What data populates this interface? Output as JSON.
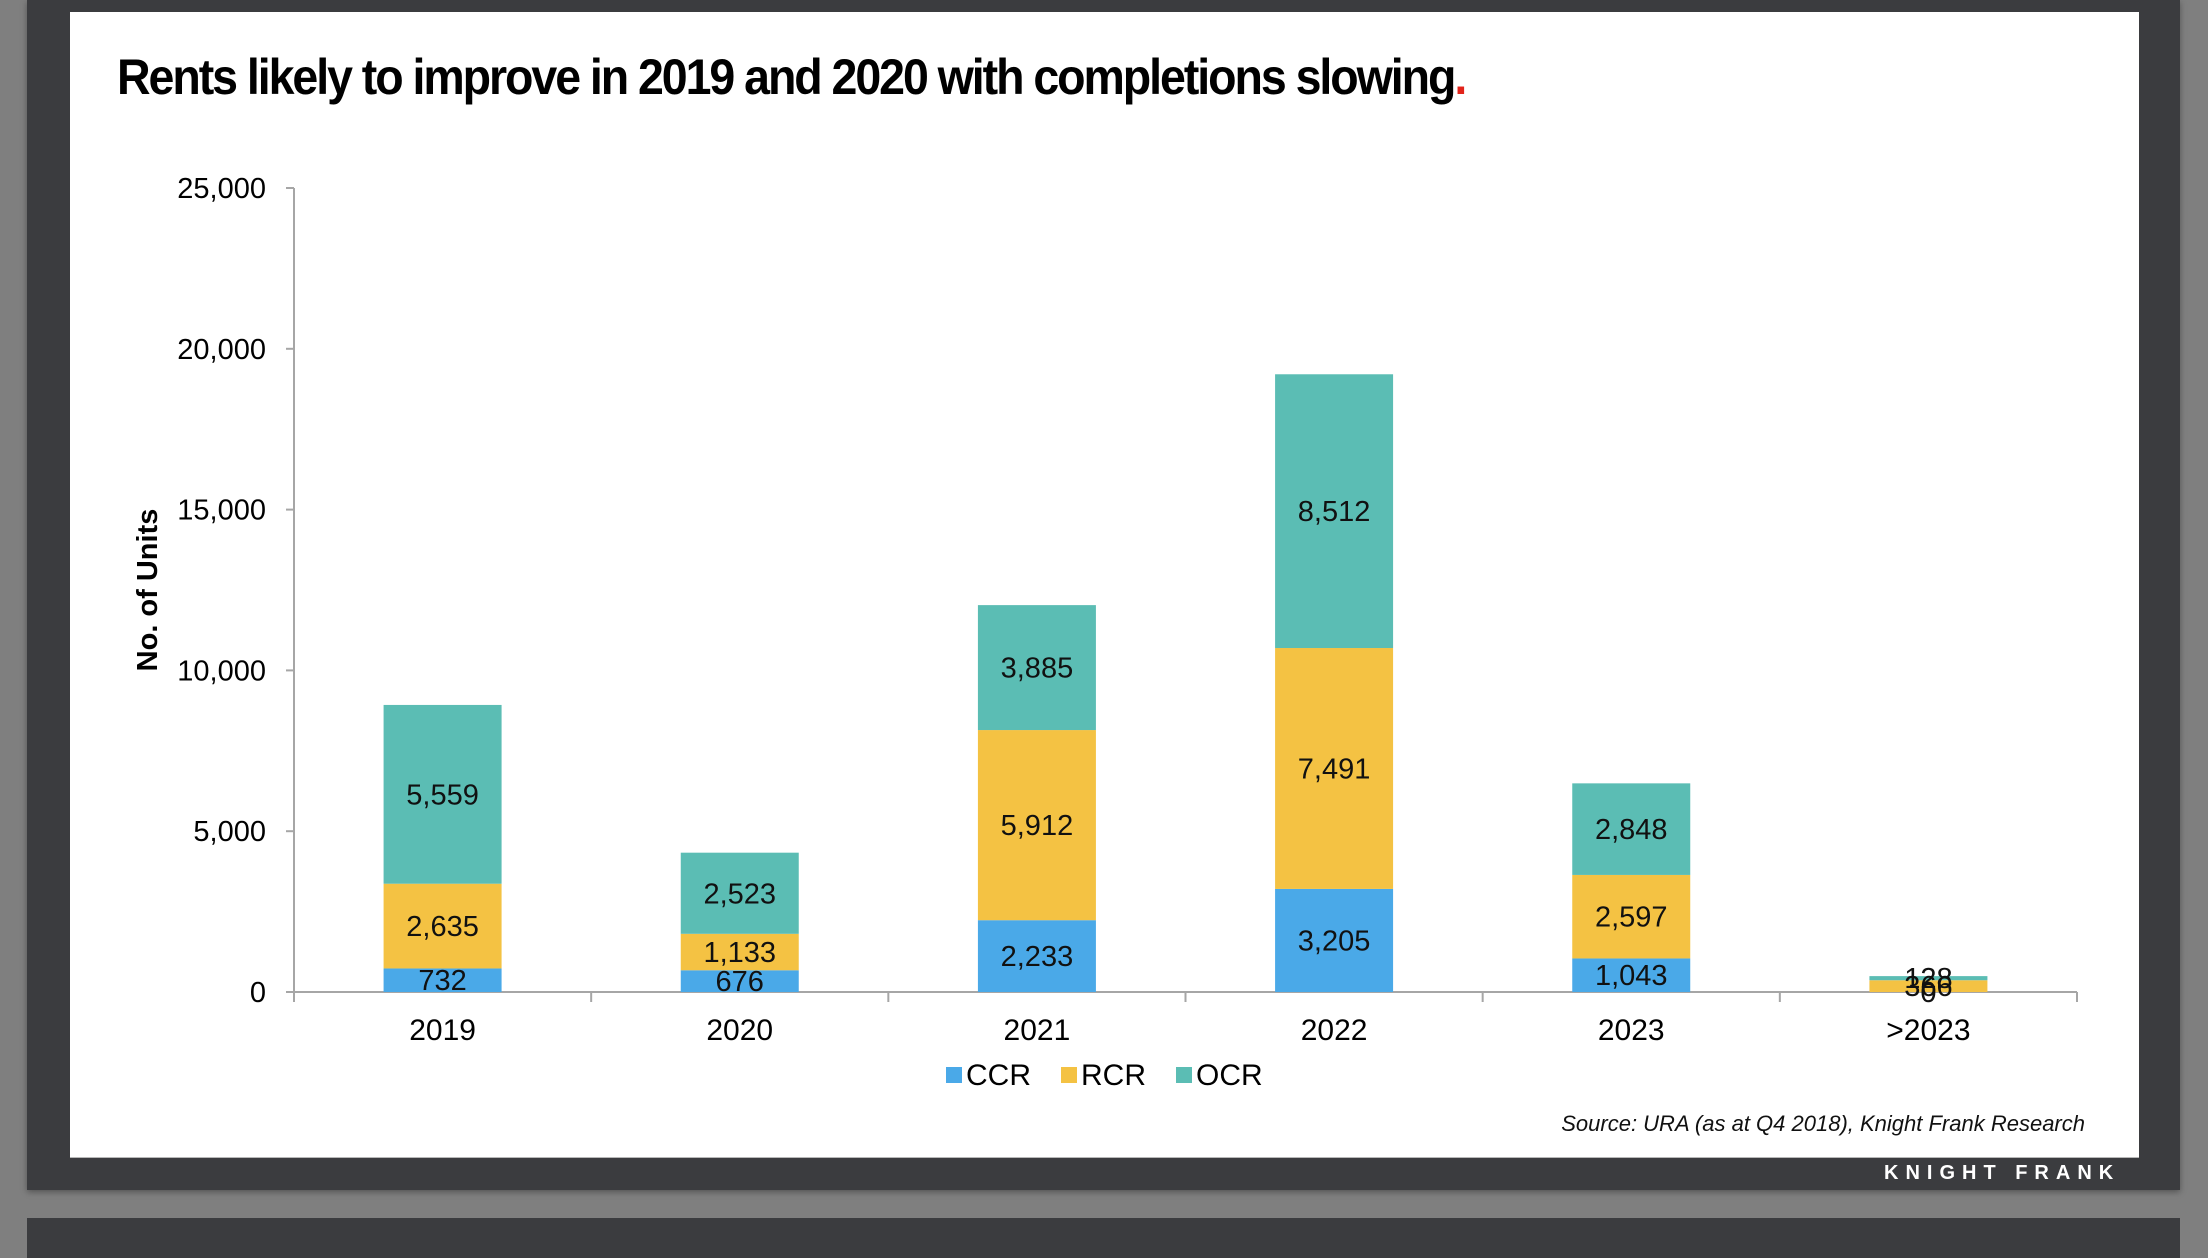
{
  "slide": {
    "title": "Rents likely to improve in 2019 and 2020 with completions slowing",
    "title_end_mark": ".",
    "source": "Source: URA (as at Q4 2018), Knight Frank Research",
    "brand": "KNIGHT FRANK"
  },
  "colors": {
    "CCR": "#4aa9e8",
    "RCR": "#f4c243",
    "OCR": "#5bbdb4",
    "title_dot": "#e2231a"
  },
  "chart_data": {
    "type": "bar",
    "stacked": true,
    "title": "Rents likely to improve in 2019 and 2020 with completions slowing.",
    "xlabel": "",
    "ylabel": "No. of Units",
    "ylim": [
      0,
      25000
    ],
    "yticks": [
      0,
      5000,
      10000,
      15000,
      20000,
      25000
    ],
    "ytick_labels": [
      "0",
      "5,000",
      "10,000",
      "15,000",
      "20,000",
      "25,000"
    ],
    "grid": false,
    "legend_position": "bottom",
    "categories": [
      "2019",
      "2020",
      "2021",
      "2022",
      "2023",
      ">2023"
    ],
    "series": [
      {
        "name": "CCR",
        "values": [
          732,
          676,
          2233,
          3205,
          1043,
          0
        ],
        "labels": [
          "732",
          "676",
          "2,233",
          "3,205",
          "1,043",
          "0"
        ]
      },
      {
        "name": "RCR",
        "values": [
          2635,
          1133,
          5912,
          7491,
          2597,
          366
        ],
        "labels": [
          "2,635",
          "1,133",
          "5,912",
          "7,491",
          "2,597",
          "366"
        ]
      },
      {
        "name": "OCR",
        "values": [
          5559,
          2523,
          3885,
          8512,
          2848,
          128
        ],
        "labels": [
          "5,559",
          "2,523",
          "3,885",
          "8,512",
          "2,848",
          "128"
        ]
      }
    ]
  }
}
